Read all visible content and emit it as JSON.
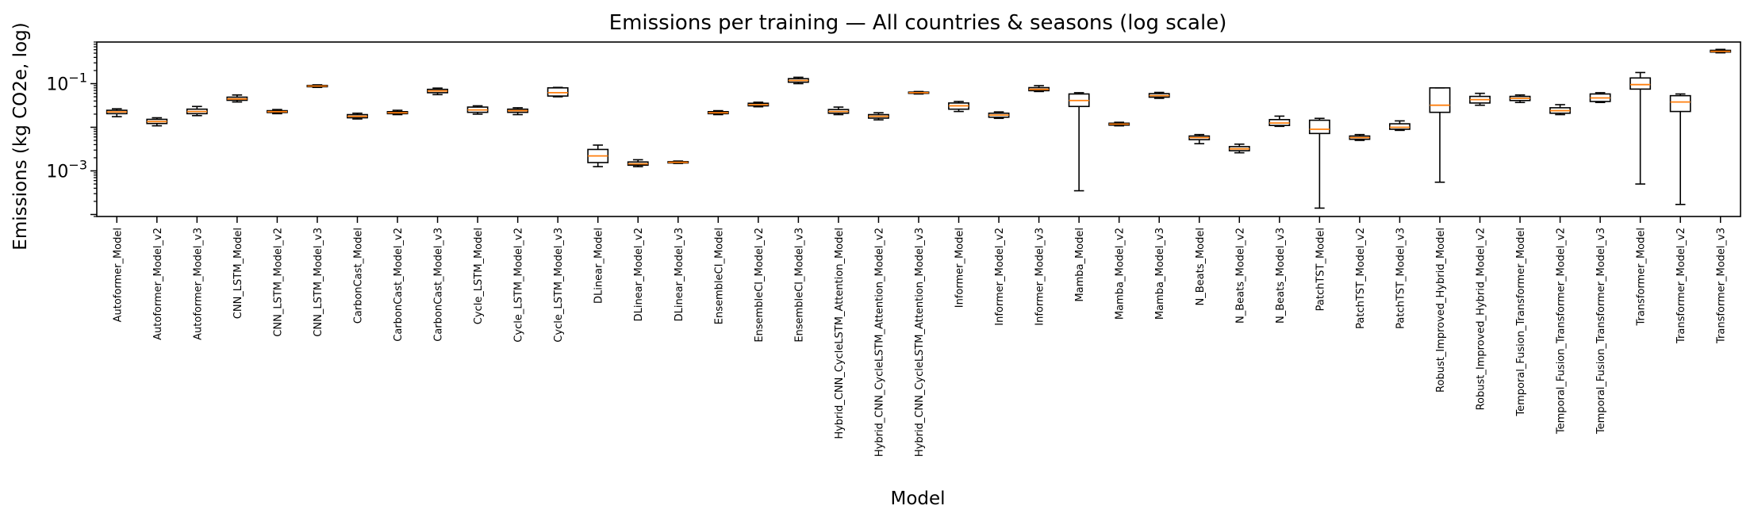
{
  "chart_data": {
    "type": "box",
    "title": "Emissions per training — All countries & seasons (log scale)",
    "xlabel": "Model",
    "ylabel": "Emissions (kg CO2e, log)",
    "yscale": "log",
    "ylim": [
      9e-05,
      0.9
    ],
    "yticks": [
      {
        "value": 0.001,
        "base": "10",
        "exp": "−3"
      },
      {
        "value": 0.1,
        "base": "10",
        "exp": "−1"
      }
    ],
    "colors": {
      "box": "#000000",
      "median": "#ff7f0e"
    },
    "boxes": [
      {
        "label": "Autoformer_Model",
        "min": 0.0175,
        "q1": 0.0205,
        "median": 0.0225,
        "q3": 0.0245,
        "max": 0.0265
      },
      {
        "label": "Autoformer_Model_v2",
        "min": 0.0108,
        "q1": 0.0122,
        "median": 0.0135,
        "q3": 0.0152,
        "max": 0.0165
      },
      {
        "label": "Autoformer_Model_v3",
        "min": 0.0185,
        "q1": 0.0205,
        "median": 0.023,
        "q3": 0.026,
        "max": 0.03
      },
      {
        "label": "CNN_LSTM_Model",
        "min": 0.038,
        "q1": 0.0415,
        "median": 0.0445,
        "q3": 0.049,
        "max": 0.055
      },
      {
        "label": "CNN_LSTM_Model_v2",
        "min": 0.0205,
        "q1": 0.0218,
        "median": 0.0228,
        "q3": 0.024,
        "max": 0.0255
      },
      {
        "label": "CNN_LSTM_Model_v3",
        "min": 0.082,
        "q1": 0.085,
        "median": 0.088,
        "q3": 0.091,
        "max": 0.094
      },
      {
        "label": "CarbonCast_Model",
        "min": 0.0155,
        "q1": 0.0165,
        "median": 0.0178,
        "q3": 0.0195,
        "max": 0.021
      },
      {
        "label": "CarbonCast_Model_v2",
        "min": 0.0195,
        "q1": 0.0205,
        "median": 0.0215,
        "q3": 0.0228,
        "max": 0.0245
      },
      {
        "label": "CarbonCast_Model_v3",
        "min": 0.056,
        "q1": 0.062,
        "median": 0.068,
        "q3": 0.074,
        "max": 0.079
      },
      {
        "label": "Cycle_LSTM_Model",
        "min": 0.02,
        "q1": 0.022,
        "median": 0.025,
        "q3": 0.029,
        "max": 0.031
      },
      {
        "label": "Cycle_LSTM_Model_v2",
        "min": 0.0195,
        "q1": 0.022,
        "median": 0.024,
        "q3": 0.026,
        "max": 0.028
      },
      {
        "label": "Cycle_LSTM_Model_v3",
        "min": 0.05,
        "q1": 0.052,
        "median": 0.062,
        "q3": 0.08,
        "max": 0.082
      },
      {
        "label": "DLinear_Model",
        "min": 0.00125,
        "q1": 0.00155,
        "median": 0.0022,
        "q3": 0.0031,
        "max": 0.0039
      },
      {
        "label": "DLinear_Model_v2",
        "min": 0.00125,
        "q1": 0.00135,
        "median": 0.00145,
        "q3": 0.0016,
        "max": 0.0018
      },
      {
        "label": "DLinear_Model_v3",
        "min": 0.00148,
        "q1": 0.00152,
        "median": 0.00157,
        "q3": 0.00163,
        "max": 0.00168
      },
      {
        "label": "EnsembleCI_Model",
        "min": 0.0195,
        "q1": 0.0205,
        "median": 0.0215,
        "q3": 0.0228,
        "max": 0.024
      },
      {
        "label": "EnsembleCI_Model_v2",
        "min": 0.0295,
        "q1": 0.031,
        "median": 0.033,
        "q3": 0.0355,
        "max": 0.0375
      },
      {
        "label": "EnsembleCI_Model_v3",
        "min": 0.1,
        "q1": 0.108,
        "median": 0.118,
        "q3": 0.13,
        "max": 0.14
      },
      {
        "label": "Hybrid_CNN_CycleLSTM_Attention_Model",
        "min": 0.0195,
        "q1": 0.021,
        "median": 0.023,
        "q3": 0.0255,
        "max": 0.029
      },
      {
        "label": "Hybrid_CNN_CycleLSTM_Attention_Model_v2",
        "min": 0.0148,
        "q1": 0.0162,
        "median": 0.0178,
        "q3": 0.0195,
        "max": 0.0215
      },
      {
        "label": "Hybrid_CNN_CycleLSTM_Attention_Model_v3",
        "min": 0.058,
        "q1": 0.06,
        "median": 0.062,
        "q3": 0.064,
        "max": 0.066
      },
      {
        "label": "Informer_Model",
        "min": 0.023,
        "q1": 0.026,
        "median": 0.031,
        "q3": 0.036,
        "max": 0.039
      },
      {
        "label": "Informer_Model_v2",
        "min": 0.016,
        "q1": 0.017,
        "median": 0.019,
        "q3": 0.021,
        "max": 0.0225
      },
      {
        "label": "Informer_Model_v3",
        "min": 0.066,
        "q1": 0.069,
        "median": 0.074,
        "q3": 0.081,
        "max": 0.09
      },
      {
        "label": "Mamba_Model",
        "min": 0.00035,
        "q1": 0.03,
        "median": 0.041,
        "q3": 0.058,
        "max": 0.062
      },
      {
        "label": "Mamba_Model_v2",
        "min": 0.0108,
        "q1": 0.0112,
        "median": 0.0118,
        "q3": 0.0124,
        "max": 0.013
      },
      {
        "label": "Mamba_Model_v3",
        "min": 0.046,
        "q1": 0.049,
        "median": 0.053,
        "q3": 0.059,
        "max": 0.063
      },
      {
        "label": "N_Beats_Model",
        "min": 0.0042,
        "q1": 0.0052,
        "median": 0.0058,
        "q3": 0.0063,
        "max": 0.0068
      },
      {
        "label": "N_Beats_Model_v2",
        "min": 0.0026,
        "q1": 0.0029,
        "median": 0.0032,
        "q3": 0.0036,
        "max": 0.0041
      },
      {
        "label": "N_Beats_Model_v3",
        "min": 0.0105,
        "q1": 0.011,
        "median": 0.0125,
        "q3": 0.015,
        "max": 0.018
      },
      {
        "label": "PatchTST_Model",
        "min": 0.00014,
        "q1": 0.0072,
        "median": 0.009,
        "q3": 0.0145,
        "max": 0.016
      },
      {
        "label": "PatchTST_Model_v2",
        "min": 0.005,
        "q1": 0.0053,
        "median": 0.0058,
        "q3": 0.0063,
        "max": 0.0068
      },
      {
        "label": "PatchTST_Model_v3",
        "min": 0.0085,
        "q1": 0.009,
        "median": 0.01,
        "q3": 0.012,
        "max": 0.014
      },
      {
        "label": "Robust_Improved_Hybrid_Model",
        "min": 0.00055,
        "q1": 0.022,
        "median": 0.032,
        "q3": 0.08,
        "max": 0.08
      },
      {
        "label": "Robust_Improved_Hybrid_Model_v2",
        "min": 0.032,
        "q1": 0.036,
        "median": 0.043,
        "q3": 0.051,
        "max": 0.06
      },
      {
        "label": "Temporal_Fusion_Transformer_Model",
        "min": 0.037,
        "q1": 0.041,
        "median": 0.046,
        "q3": 0.051,
        "max": 0.055
      },
      {
        "label": "Temporal_Fusion_Transformer_Model_v2",
        "min": 0.0195,
        "q1": 0.021,
        "median": 0.024,
        "q3": 0.028,
        "max": 0.033
      },
      {
        "label": "Temporal_Fusion_Transformer_Model_v3",
        "min": 0.037,
        "q1": 0.039,
        "median": 0.047,
        "q3": 0.058,
        "max": 0.062
      },
      {
        "label": "Transformer_Model",
        "min": 0.0005,
        "q1": 0.075,
        "median": 0.095,
        "q3": 0.135,
        "max": 0.18
      },
      {
        "label": "Transformer_Model_v2",
        "min": 0.00017,
        "q1": 0.023,
        "median": 0.038,
        "q3": 0.053,
        "max": 0.058
      },
      {
        "label": "Transformer_Model_v3",
        "min": 0.51,
        "q1": 0.53,
        "median": 0.55,
        "q3": 0.58,
        "max": 0.61
      }
    ]
  }
}
